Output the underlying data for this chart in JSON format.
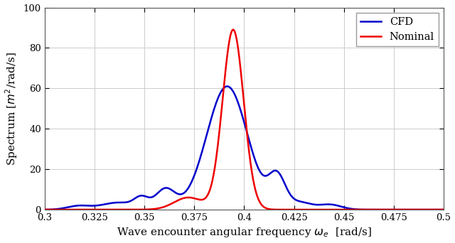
{
  "title": "",
  "xlabel": "Wave encounter angular frequency $\\omega_e$  [rad/s]",
  "ylabel": "Spectrum [$m^2$/rad/s]",
  "xlim": [
    0.3,
    0.5
  ],
  "ylim": [
    0,
    100
  ],
  "yticks": [
    0,
    20,
    40,
    60,
    80,
    100
  ],
  "xticks": [
    0.3,
    0.325,
    0.35,
    0.375,
    0.4,
    0.425,
    0.45,
    0.475,
    0.5
  ],
  "nominal_color": "#EE0000",
  "cfd_color": "#0000CC",
  "line_width": 1.8,
  "legend_labels": [
    "Nominal",
    "CFD"
  ],
  "legend_loc": "upper right",
  "bg_color": "#ffffff",
  "grid_color": "#cccccc"
}
